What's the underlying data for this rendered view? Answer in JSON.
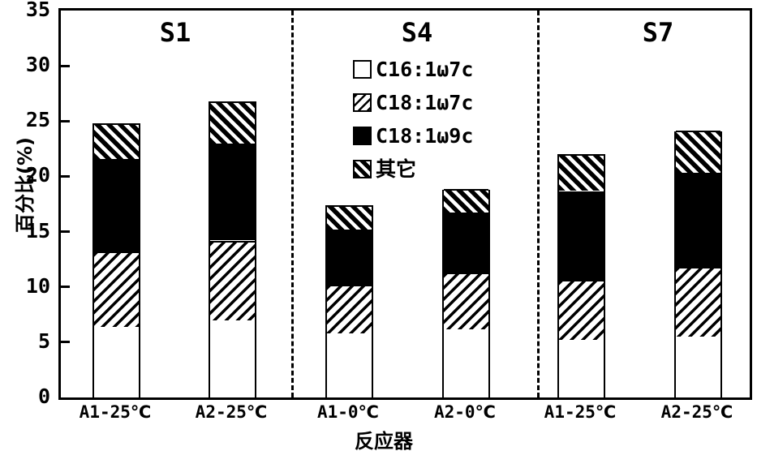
{
  "chart_data": {
    "type": "bar",
    "stacked": true,
    "title": "",
    "xlabel": "反应器",
    "ylabel": "百分比(%)",
    "ylim": [
      0,
      35
    ],
    "yticks": [
      0,
      5,
      10,
      15,
      20,
      25,
      30,
      35
    ],
    "grid": false,
    "legend_position": "top-center-inside",
    "groups": [
      {
        "label": "S1"
      },
      {
        "label": "S4"
      },
      {
        "label": "S7"
      }
    ],
    "categories": [
      "A1-25℃",
      "A2-25℃",
      "A1-0℃",
      "A2-0℃",
      "A1-25℃",
      "A2-25℃"
    ],
    "series": [
      {
        "name": "C16:1ω7c",
        "pattern": "white",
        "values": [
          6.4,
          7.0,
          5.8,
          6.2,
          5.2,
          5.5
        ]
      },
      {
        "name": "C18:1ω7c",
        "pattern": "hatch-slash",
        "values": [
          6.8,
          7.2,
          4.4,
          5.1,
          5.4,
          6.3
        ]
      },
      {
        "name": "C18:1ω9c",
        "pattern": "black",
        "values": [
          8.4,
          8.8,
          5.0,
          5.4,
          8.1,
          8.5
        ]
      },
      {
        "name": "其它",
        "pattern": "hatch-backslash",
        "values": [
          3.2,
          3.8,
          2.2,
          2.1,
          3.3,
          3.8
        ]
      }
    ],
    "totals": [
      24.8,
      26.8,
      17.4,
      18.8,
      22.0,
      24.1
    ],
    "colors": {
      "foreground": "#000000",
      "background": "#ffffff"
    }
  }
}
